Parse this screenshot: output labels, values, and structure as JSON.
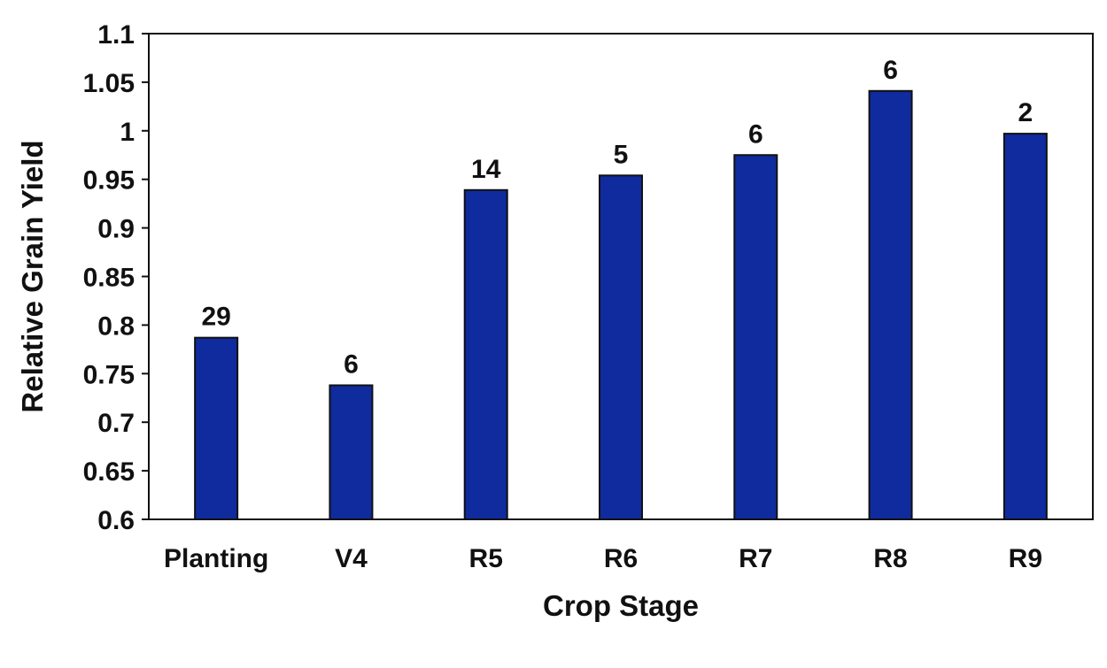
{
  "chart_data": {
    "type": "bar",
    "title": "",
    "xlabel": "Crop Stage",
    "ylabel": "Relative Grain Yield",
    "categories": [
      "Planting",
      "V4",
      "R5",
      "R6",
      "R7",
      "R8",
      "R9"
    ],
    "values": [
      0.787,
      0.738,
      0.939,
      0.954,
      0.975,
      1.041,
      0.997
    ],
    "data_labels": [
      "29",
      "6",
      "14",
      "5",
      "6",
      "6",
      "2"
    ],
    "ylim": [
      0.6,
      1.1
    ],
    "yticks": [
      "0.6",
      "0.65",
      "0.7",
      "0.75",
      "0.8",
      "0.85",
      "0.9",
      "0.95",
      "1",
      "1.05",
      "1.1"
    ],
    "grid": false,
    "legend": "none",
    "bar_color": "#0f2b9e",
    "bar_edge_color": "#111111"
  }
}
